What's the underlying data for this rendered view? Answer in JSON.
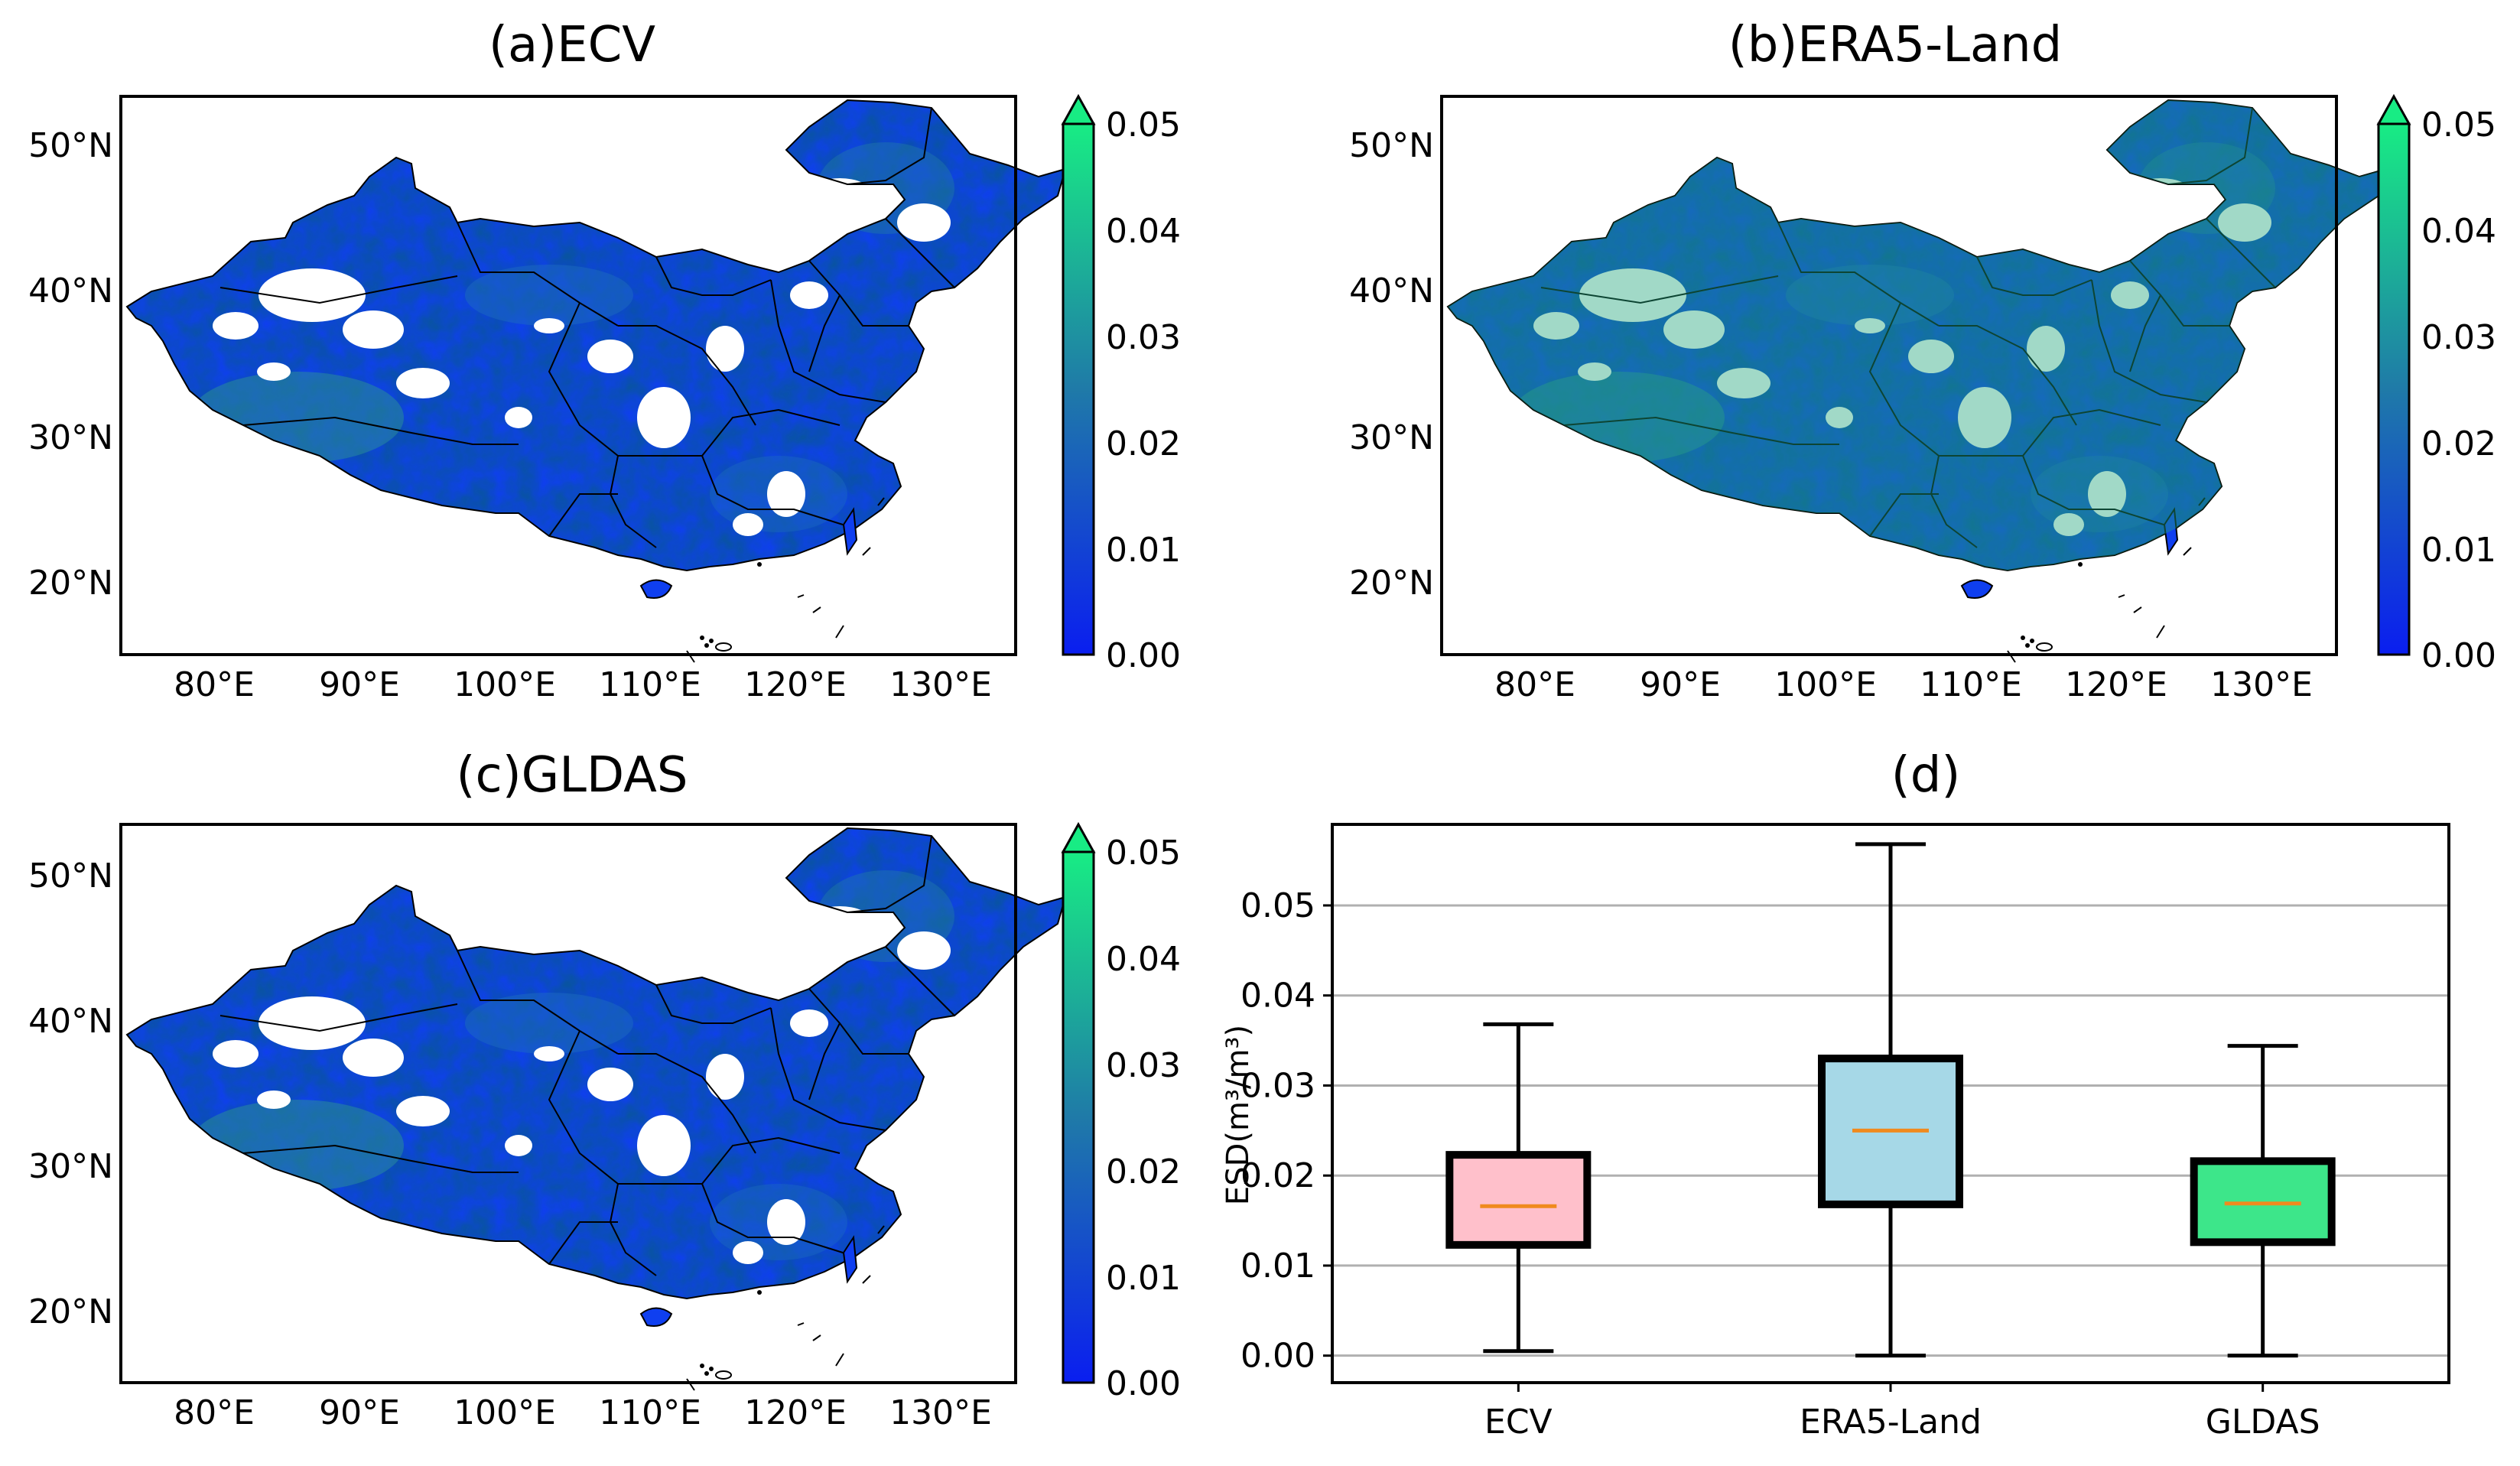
{
  "colors": {
    "cmap_low": "#0a1ef0",
    "cmap_mid": "#1f7aa8",
    "cmap_high": "#18ec84",
    "ecv_box": "#ffc0cb",
    "era5_box": "#a6d8e7",
    "gldas_box": "#3de68a",
    "median": "#f08a1e",
    "grid": "#b0b0b0"
  },
  "maps": [
    {
      "id": "a",
      "title": "(a)ECV",
      "mean_level": 0.015
    },
    {
      "id": "b",
      "title": "(b)ERA5-Land",
      "mean_level": 0.026
    },
    {
      "id": "c",
      "title": "(c)GLDAS",
      "mean_level": 0.017
    }
  ],
  "map_axes": {
    "lon_ticks": [
      "80°E",
      "90°E",
      "100°E",
      "110°E",
      "120°E",
      "130°E"
    ],
    "lat_ticks": [
      "50°N",
      "40°N",
      "30°N",
      "20°N"
    ],
    "lon_values": [
      80,
      90,
      100,
      110,
      120,
      130
    ],
    "lat_values": [
      50,
      40,
      30,
      20
    ],
    "lon_range": [
      73.5,
      135
    ],
    "lat_range": [
      15,
      53.5
    ]
  },
  "colorbar": {
    "ticks": [
      "0.05",
      "0.04",
      "0.03",
      "0.02",
      "0.01",
      "0.00"
    ],
    "range": [
      0,
      0.05
    ],
    "extend": "max"
  },
  "chart_data": {
    "type": "boxplot",
    "title": "(d)",
    "xlabel": "",
    "ylabel": "ESD(m³/m³)",
    "ylim": [
      -0.003,
      0.059
    ],
    "yticks": [
      "0.00",
      "0.01",
      "0.02",
      "0.03",
      "0.04",
      "0.05"
    ],
    "ytick_values": [
      0,
      0.01,
      0.02,
      0.03,
      0.04,
      0.05
    ],
    "grid": "horizontal",
    "categories": [
      "ECV",
      "ERA5-Land",
      "GLDAS"
    ],
    "boxes": [
      {
        "name": "ECV",
        "whisker_low": 0.0005,
        "q1": 0.0123,
        "median": 0.0166,
        "q3": 0.0223,
        "whisker_high": 0.0368
      },
      {
        "name": "ERA5-Land",
        "whisker_low": 0.0,
        "q1": 0.0168,
        "median": 0.025,
        "q3": 0.033,
        "whisker_high": 0.0568
      },
      {
        "name": "GLDAS",
        "whisker_low": 0.0,
        "q1": 0.0126,
        "median": 0.0169,
        "q3": 0.0216,
        "whisker_high": 0.0344
      }
    ]
  }
}
